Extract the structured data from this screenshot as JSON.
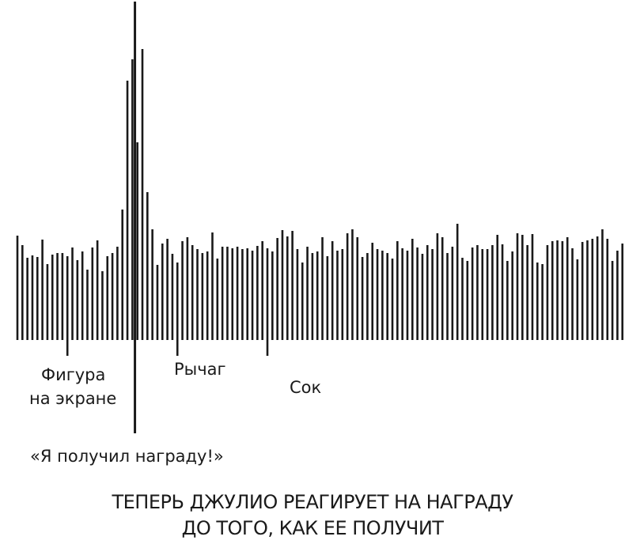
{
  "chart_data": {
    "type": "bar",
    "title": "ТЕПЕРЬ ДЖУЛИО РЕАГИРУЕТ НА НАГРАДУ ДО ТОГО, КАК ЕЕ ПОЛУЧИТ",
    "title_lines": [
      "ТЕПЕРЬ ДЖУЛИО РЕАГИРУЕТ НА НАГРАДУ",
      "ДО ТОГО, КАК ЕЕ ПОЛУЧИТ"
    ],
    "xlabel": "",
    "ylabel": "",
    "ylim": [
      0,
      430
    ],
    "grid": false,
    "legend": "none",
    "bar_color": "#1a1a1a",
    "values": [
      132,
      120,
      104,
      107,
      105,
      127,
      96,
      108,
      110,
      110,
      106,
      117,
      101,
      112,
      89,
      117,
      126,
      87,
      106,
      110,
      118,
      165,
      328,
      355,
      250,
      368,
      187,
      140,
      95,
      122,
      128,
      109,
      98,
      125,
      130,
      120,
      115,
      110,
      112,
      136,
      103,
      118,
      118,
      116,
      118,
      115,
      116,
      113,
      119,
      125,
      116,
      112,
      129,
      139,
      131,
      138,
      115,
      98,
      118,
      110,
      112,
      130,
      106,
      125,
      113,
      115,
      135,
      140,
      130,
      105,
      110,
      123,
      115,
      113,
      110,
      103,
      125,
      116,
      113,
      128,
      117,
      109,
      120,
      115,
      135,
      130,
      110,
      118,
      147,
      104,
      100,
      117,
      120,
      115,
      115,
      120,
      133,
      121,
      100,
      112,
      135,
      133,
      120,
      134,
      98,
      96,
      120,
      125,
      126,
      125,
      130,
      116,
      102,
      124,
      126,
      128,
      131,
      140,
      128,
      100,
      113,
      122,
      133,
      137,
      120
    ],
    "annotations": [
      {
        "text_lines": [
          "Фигура",
          "на экране"
        ],
        "index": 10,
        "kind": "tick"
      },
      {
        "text_lines": [
          "«Я получил награду!»"
        ],
        "index": 23,
        "kind": "line"
      },
      {
        "text_lines": [
          "Рычаг"
        ],
        "index": 32,
        "kind": "tick"
      },
      {
        "text_lines": [
          "Сок"
        ],
        "index": 50,
        "kind": "tick"
      }
    ]
  }
}
